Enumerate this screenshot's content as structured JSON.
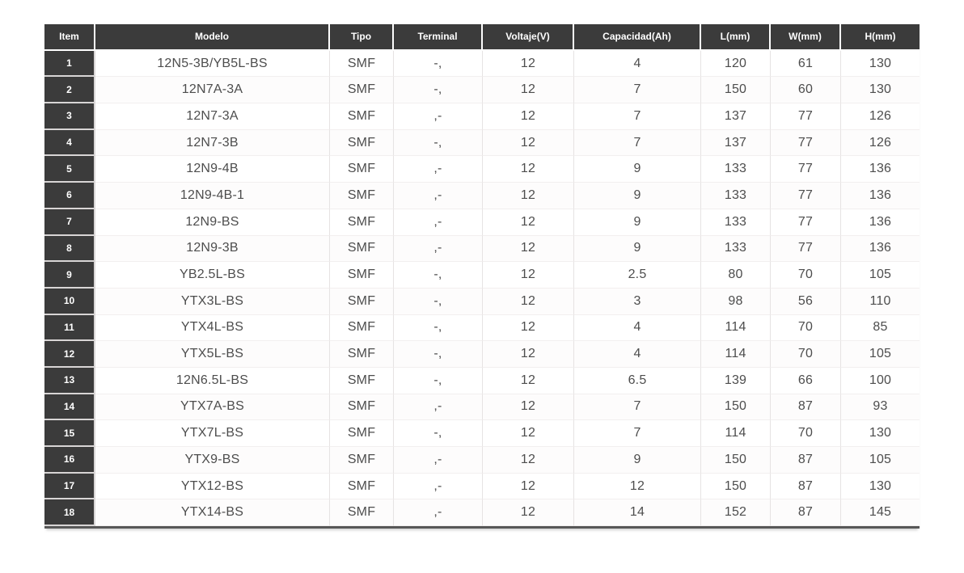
{
  "colors": {
    "header_bg": "#3b3b3b",
    "header_text": "#ffffff",
    "body_text": "#4d4d4d",
    "row_line": "#f2efef",
    "col_line": "#e6e3e3",
    "item_line": "#d8d5d5",
    "bottom_border": "#575757",
    "page_bg": "#ffffff"
  },
  "table": {
    "columns": [
      {
        "key": "item",
        "label": "Item"
      },
      {
        "key": "modelo",
        "label": "Modelo"
      },
      {
        "key": "tipo",
        "label": "Tipo"
      },
      {
        "key": "terminal",
        "label": "Terminal"
      },
      {
        "key": "voltaje",
        "label": "Voltaje(V)"
      },
      {
        "key": "capacidad",
        "label": "Capacidad(Ah)"
      },
      {
        "key": "l",
        "label": "L(mm)"
      },
      {
        "key": "w",
        "label": "W(mm)"
      },
      {
        "key": "h",
        "label": "H(mm)"
      }
    ],
    "rows": [
      {
        "item": "1",
        "modelo": "12N5-3B/YB5L-BS",
        "tipo": "SMF",
        "terminal": "-,",
        "voltaje": "12",
        "capacidad": "4",
        "l": "120",
        "w": "61",
        "h": "130"
      },
      {
        "item": "2",
        "modelo": "12N7A-3A",
        "tipo": "SMF",
        "terminal": "-,",
        "voltaje": "12",
        "capacidad": "7",
        "l": "150",
        "w": "60",
        "h": "130"
      },
      {
        "item": "3",
        "modelo": "12N7-3A",
        "tipo": "SMF",
        "terminal": ",-",
        "voltaje": "12",
        "capacidad": "7",
        "l": "137",
        "w": "77",
        "h": "126"
      },
      {
        "item": "4",
        "modelo": "12N7-3B",
        "tipo": "SMF",
        "terminal": "-,",
        "voltaje": "12",
        "capacidad": "7",
        "l": "137",
        "w": "77",
        "h": "126"
      },
      {
        "item": "5",
        "modelo": "12N9-4B",
        "tipo": "SMF",
        "terminal": ",-",
        "voltaje": "12",
        "capacidad": "9",
        "l": "133",
        "w": "77",
        "h": "136"
      },
      {
        "item": "6",
        "modelo": "12N9-4B-1",
        "tipo": "SMF",
        "terminal": ",-",
        "voltaje": "12",
        "capacidad": "9",
        "l": "133",
        "w": "77",
        "h": "136"
      },
      {
        "item": "7",
        "modelo": "12N9-BS",
        "tipo": "SMF",
        "terminal": ",-",
        "voltaje": "12",
        "capacidad": "9",
        "l": "133",
        "w": "77",
        "h": "136"
      },
      {
        "item": "8",
        "modelo": "12N9-3B",
        "tipo": "SMF",
        "terminal": ",-",
        "voltaje": "12",
        "capacidad": "9",
        "l": "133",
        "w": "77",
        "h": "136"
      },
      {
        "item": "9",
        "modelo": "YB2.5L-BS",
        "tipo": "SMF",
        "terminal": "-,",
        "voltaje": "12",
        "capacidad": "2.5",
        "l": "80",
        "w": "70",
        "h": "105"
      },
      {
        "item": "10",
        "modelo": "YTX3L-BS",
        "tipo": "SMF",
        "terminal": "-,",
        "voltaje": "12",
        "capacidad": "3",
        "l": "98",
        "w": "56",
        "h": "110"
      },
      {
        "item": "11",
        "modelo": "YTX4L-BS",
        "tipo": "SMF",
        "terminal": "-,",
        "voltaje": "12",
        "capacidad": "4",
        "l": "114",
        "w": "70",
        "h": "85"
      },
      {
        "item": "12",
        "modelo": "YTX5L-BS",
        "tipo": "SMF",
        "terminal": "-,",
        "voltaje": "12",
        "capacidad": "4",
        "l": "114",
        "w": "70",
        "h": "105"
      },
      {
        "item": "13",
        "modelo": "12N6.5L-BS",
        "tipo": "SMF",
        "terminal": "-,",
        "voltaje": "12",
        "capacidad": "6.5",
        "l": "139",
        "w": "66",
        "h": "100"
      },
      {
        "item": "14",
        "modelo": "YTX7A-BS",
        "tipo": "SMF",
        "terminal": ",-",
        "voltaje": "12",
        "capacidad": "7",
        "l": "150",
        "w": "87",
        "h": "93"
      },
      {
        "item": "15",
        "modelo": "YTX7L-BS",
        "tipo": "SMF",
        "terminal": "-,",
        "voltaje": "12",
        "capacidad": "7",
        "l": "114",
        "w": "70",
        "h": "130"
      },
      {
        "item": "16",
        "modelo": "YTX9-BS",
        "tipo": "SMF",
        "terminal": ",-",
        "voltaje": "12",
        "capacidad": "9",
        "l": "150",
        "w": "87",
        "h": "105"
      },
      {
        "item": "17",
        "modelo": "YTX12-BS",
        "tipo": "SMF",
        "terminal": ",-",
        "voltaje": "12",
        "capacidad": "12",
        "l": "150",
        "w": "87",
        "h": "130"
      },
      {
        "item": "18",
        "modelo": "YTX14-BS",
        "tipo": "SMF",
        "terminal": ",-",
        "voltaje": "12",
        "capacidad": "14",
        "l": "152",
        "w": "87",
        "h": "145"
      }
    ]
  },
  "chart_data": {
    "type": "table",
    "title": "",
    "columns": [
      "Item",
      "Modelo",
      "Tipo",
      "Terminal",
      "Voltaje(V)",
      "Capacidad(Ah)",
      "L(mm)",
      "W(mm)",
      "H(mm)"
    ],
    "rows": [
      [
        "1",
        "12N5-3B/YB5L-BS",
        "SMF",
        "-,",
        12,
        4,
        120,
        61,
        130
      ],
      [
        "2",
        "12N7A-3A",
        "SMF",
        "-,",
        12,
        7,
        150,
        60,
        130
      ],
      [
        "3",
        "12N7-3A",
        "SMF",
        ",-",
        12,
        7,
        137,
        77,
        126
      ],
      [
        "4",
        "12N7-3B",
        "SMF",
        "-,",
        12,
        7,
        137,
        77,
        126
      ],
      [
        "5",
        "12N9-4B",
        "SMF",
        ",-",
        12,
        9,
        133,
        77,
        136
      ],
      [
        "6",
        "12N9-4B-1",
        "SMF",
        ",-",
        12,
        9,
        133,
        77,
        136
      ],
      [
        "7",
        "12N9-BS",
        "SMF",
        ",-",
        12,
        9,
        133,
        77,
        136
      ],
      [
        "8",
        "12N9-3B",
        "SMF",
        ",-",
        12,
        9,
        133,
        77,
        136
      ],
      [
        "9",
        "YB2.5L-BS",
        "SMF",
        "-,",
        12,
        2.5,
        80,
        70,
        105
      ],
      [
        "10",
        "YTX3L-BS",
        "SMF",
        "-,",
        12,
        3,
        98,
        56,
        110
      ],
      [
        "11",
        "YTX4L-BS",
        "SMF",
        "-,",
        12,
        4,
        114,
        70,
        85
      ],
      [
        "12",
        "YTX5L-BS",
        "SMF",
        "-,",
        12,
        4,
        114,
        70,
        105
      ],
      [
        "13",
        "12N6.5L-BS",
        "SMF",
        "-,",
        12,
        6.5,
        139,
        66,
        100
      ],
      [
        "14",
        "YTX7A-BS",
        "SMF",
        ",-",
        12,
        7,
        150,
        87,
        93
      ],
      [
        "15",
        "YTX7L-BS",
        "SMF",
        "-,",
        12,
        7,
        114,
        70,
        130
      ],
      [
        "16",
        "YTX9-BS",
        "SMF",
        ",-",
        12,
        9,
        150,
        87,
        105
      ],
      [
        "17",
        "YTX12-BS",
        "SMF",
        ",-",
        12,
        12,
        150,
        87,
        130
      ],
      [
        "18",
        "YTX14-BS",
        "SMF",
        ",-",
        12,
        14,
        152,
        87,
        145
      ]
    ]
  }
}
